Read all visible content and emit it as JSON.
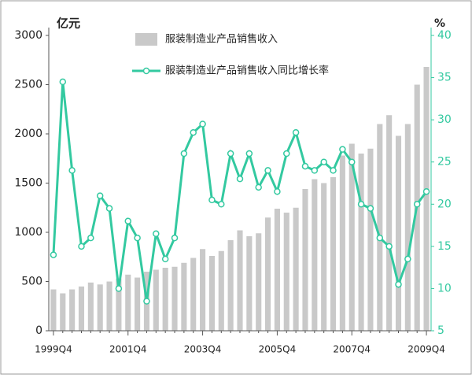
{
  "chart_data": {
    "type": "bar_line",
    "y_unit": "亿元",
    "y2_unit": "%",
    "categories": [
      "1999Q4",
      null,
      null,
      null,
      null,
      null,
      null,
      null,
      "2001Q4",
      null,
      null,
      null,
      null,
      null,
      null,
      null,
      "2003Q4",
      null,
      null,
      null,
      null,
      null,
      null,
      null,
      "2005Q4",
      null,
      null,
      null,
      null,
      null,
      null,
      null,
      "2007Q4",
      null,
      null,
      null,
      null,
      null,
      null,
      null,
      "2009Q4"
    ],
    "series": [
      {
        "name": "服装制造业产品销售收入",
        "type": "bar",
        "color": "#c9c9c9",
        "values": [
          420,
          380,
          420,
          450,
          490,
          470,
          500,
          530,
          570,
          540,
          600,
          620,
          640,
          650,
          690,
          740,
          830,
          760,
          810,
          920,
          1020,
          960,
          990,
          1150,
          1240,
          1200,
          1250,
          1440,
          1540,
          1500,
          1560,
          1780,
          1900,
          1800,
          1850,
          2100,
          2190,
          1980,
          2100,
          2500,
          2680
        ]
      },
      {
        "name": "服装制造业产品销售收入同比增长率",
        "type": "line",
        "axis": "y2",
        "color": "#33c9a0",
        "values": [
          14,
          34.5,
          24,
          15,
          16,
          21,
          19.5,
          10,
          18,
          16,
          8.5,
          16.5,
          13.5,
          16,
          26,
          28.5,
          29.5,
          20.5,
          20,
          26,
          23,
          26,
          22,
          24,
          21.5,
          26,
          28.5,
          24.5,
          24,
          25,
          24,
          26.5,
          25,
          20,
          19.5,
          16,
          15,
          10.5,
          13.5,
          20,
          21.5
        ]
      }
    ],
    "ylim": [
      0,
      3000
    ],
    "yticks": [
      0,
      500,
      1000,
      1500,
      2000,
      2500,
      3000
    ],
    "y2lim": [
      5,
      40
    ],
    "y2ticks": [
      5,
      10,
      15,
      20,
      25,
      30,
      35,
      40
    ]
  }
}
